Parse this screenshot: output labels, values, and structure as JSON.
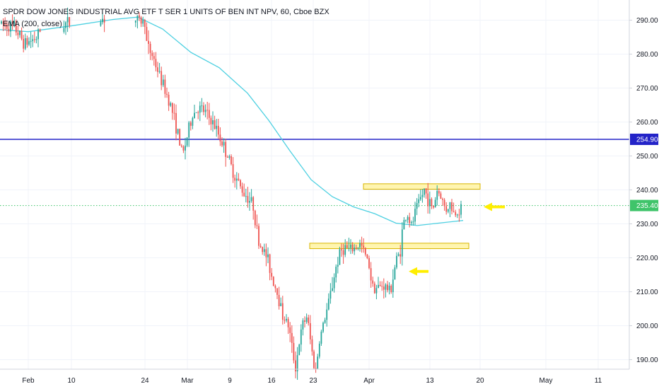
{
  "header": {
    "title": "SPDR DOW JONES INDUSTRIAL AVG ETF T SER 1 UNITS OF BEN INT NPV, 60, Cboe BZX",
    "indicator": "EMA (200, close)"
  },
  "colors": {
    "up": "#26a69a",
    "down": "#ef5350",
    "ema": "#4dd0e1",
    "resistance_line": "#2323c8",
    "last_price_line": "#3fc46a",
    "zone_fill": "#fff5b0",
    "zone_stroke": "#d9b600",
    "arrow": "#ffee00",
    "grid": "#f0f3fa",
    "axis_line": "#d1d4dc"
  },
  "chart_data": {
    "type": "candlestick",
    "title": "SPDR DOW JONES INDUSTRIAL AVG ETF T SER 1 UNITS OF BEN INT NPV, 60, Cboe BZX",
    "x_axis": {
      "tick_labels": [
        "Feb",
        "10",
        "24",
        "Mar",
        "9",
        "16",
        "23",
        "Apr",
        "13",
        "20",
        "May",
        "11"
      ],
      "range": [
        "Jan 29",
        "May 12"
      ]
    },
    "y_axis": {
      "tick_labels": [
        "190.00",
        "200.00",
        "210.00",
        "220.00",
        "230.00",
        "240.00",
        "250.00",
        "260.00",
        "270.00",
        "280.00",
        "290.00"
      ],
      "ylim": [
        186,
        296
      ],
      "position": "right"
    },
    "grid": true,
    "horizontal_lines": [
      {
        "price": 254.9,
        "label": "254.90",
        "style": "solid"
      },
      {
        "price": 235.4,
        "label": "235.40",
        "style": "dotted"
      }
    ],
    "zones": [
      {
        "x_start": 514,
        "x_end": 679,
        "y_high": 241.8,
        "y_low": 240.2
      },
      {
        "x_start": 438,
        "x_end": 663,
        "y_high": 224.3,
        "y_low": 222.7
      }
    ],
    "arrows": [
      {
        "at_price": 235.0,
        "direction": "left"
      },
      {
        "at_price": 216.0,
        "direction": "left"
      }
    ],
    "ema_path": [
      [
        0,
        287.2
      ],
      [
        40,
        286.6
      ],
      [
        100,
        288.3
      ],
      [
        160,
        290.2
      ],
      [
        195,
        290.9
      ],
      [
        230,
        287.4
      ],
      [
        270,
        280.5
      ],
      [
        310,
        276
      ],
      [
        350,
        268.5
      ],
      [
        380,
        260.5
      ],
      [
        410,
        251.5
      ],
      [
        440,
        243
      ],
      [
        470,
        238
      ],
      [
        500,
        235
      ],
      [
        530,
        233
      ],
      [
        560,
        230.2
      ],
      [
        590,
        229.5
      ],
      [
        620,
        230.2
      ],
      [
        655,
        231
      ]
    ],
    "price_path": [
      [
        0,
        289
      ],
      [
        20,
        288
      ],
      [
        35,
        283
      ],
      [
        52,
        285
      ],
      [
        60,
        288
      ],
      [
        90,
        289
      ],
      [
        120,
        290
      ],
      [
        150,
        290.5
      ],
      [
        190,
        290
      ],
      [
        205,
        289.5
      ],
      [
        208,
        282
      ],
      [
        215,
        280
      ],
      [
        225,
        274
      ],
      [
        232,
        270
      ],
      [
        240,
        266
      ],
      [
        250,
        258
      ],
      [
        258,
        250
      ],
      [
        265,
        256
      ],
      [
        272,
        262
      ],
      [
        280,
        264
      ],
      [
        290,
        263
      ],
      [
        300,
        260
      ],
      [
        310,
        256
      ],
      [
        318,
        252
      ],
      [
        322,
        250
      ],
      [
        328,
        246
      ],
      [
        335,
        243
      ],
      [
        342,
        240
      ],
      [
        350,
        238
      ],
      [
        358,
        235.5
      ],
      [
        362,
        230
      ],
      [
        365,
        225
      ],
      [
        370,
        223
      ],
      [
        378,
        220
      ],
      [
        385,
        214
      ],
      [
        392,
        210
      ],
      [
        400,
        203
      ],
      [
        408,
        200
      ],
      [
        414,
        192
      ],
      [
        418,
        188
      ],
      [
        424,
        196
      ],
      [
        428,
        200
      ],
      [
        434,
        203
      ],
      [
        440,
        194
      ],
      [
        446,
        186
      ],
      [
        452,
        196
      ],
      [
        458,
        201
      ],
      [
        464,
        206
      ],
      [
        470,
        212
      ],
      [
        476,
        218
      ],
      [
        482,
        222
      ],
      [
        488,
        223
      ],
      [
        495,
        222
      ],
      [
        502,
        223
      ],
      [
        510,
        224
      ],
      [
        518,
        220
      ],
      [
        522,
        218
      ],
      [
        526,
        212
      ],
      [
        534,
        211
      ],
      [
        542,
        212
      ],
      [
        552,
        210
      ],
      [
        560,
        219
      ],
      [
        566,
        222
      ],
      [
        570,
        230
      ],
      [
        576,
        233
      ],
      [
        582,
        229
      ],
      [
        588,
        234
      ],
      [
        594,
        237
      ],
      [
        600,
        240
      ],
      [
        606,
        237
      ],
      [
        612,
        234
      ],
      [
        618,
        240
      ],
      [
        624,
        238
      ],
      [
        630,
        234
      ],
      [
        636,
        236
      ],
      [
        642,
        233
      ],
      [
        648,
        234
      ],
      [
        654,
        235.4
      ]
    ]
  }
}
